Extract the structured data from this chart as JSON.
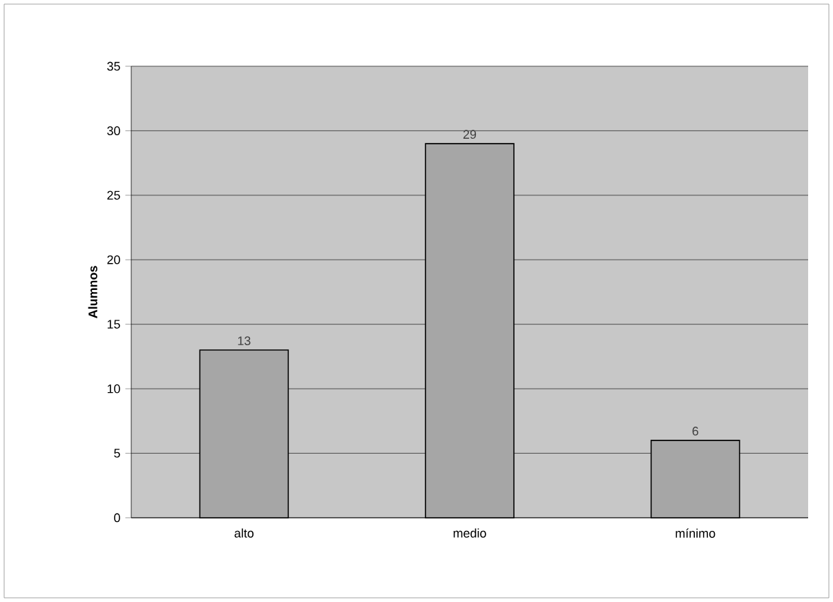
{
  "chart_data": {
    "type": "bar",
    "ylabel": "Alumnos",
    "categories": [
      "alto",
      "medio",
      "mínimo"
    ],
    "values": [
      13,
      29,
      6
    ],
    "color": "#a6a6a6",
    "ylim": [
      0,
      35
    ],
    "yticks": [
      0,
      5,
      10,
      15,
      20,
      25,
      30,
      35
    ],
    "grid": "y",
    "data_labels": true
  }
}
